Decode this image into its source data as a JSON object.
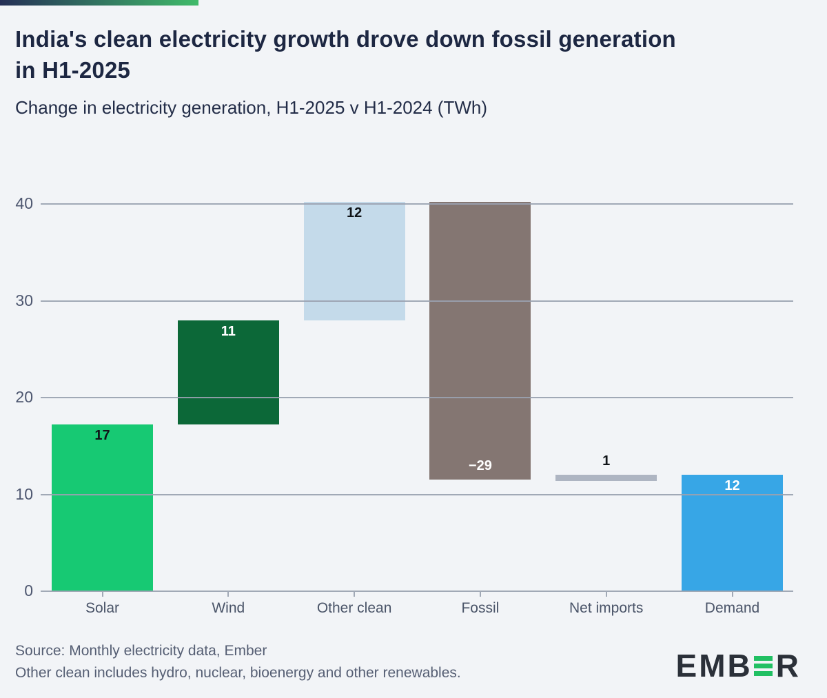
{
  "header": {
    "title_line1": "India's clean electricity growth drove down fossil generation",
    "title_line2": "in H1-2025",
    "subtitle": "Change in electricity generation, H1-2025 v H1-2024 (TWh)",
    "accent_gradient": {
      "from": "#252f56",
      "to": "#40bb6a"
    }
  },
  "chart_data": {
    "type": "bar",
    "variant": "waterfall",
    "title": "India's clean electricity growth drove down fossil generation in H1-2025",
    "subtitle": "Change in electricity generation, H1-2025 v H1-2024 (TWh)",
    "unit": "TWh",
    "categories": [
      "Solar",
      "Wind",
      "Other clean",
      "Fossil",
      "Net imports",
      "Demand"
    ],
    "values": [
      17,
      11,
      12,
      -29,
      1,
      12
    ],
    "ylim": [
      0,
      40
    ],
    "yticks": [
      "0",
      "10",
      "20",
      "30",
      "40"
    ],
    "ytick_values": [
      0,
      10,
      20,
      30,
      40
    ],
    "grid": true,
    "legend": false,
    "gridline_color": "#a9afbb",
    "axis_label_color": "#4e5770",
    "bars": [
      {
        "category": "Solar",
        "value": 17,
        "label": "17",
        "start": 0,
        "end": 17.2,
        "color": "#17c973",
        "label_color": "#101418",
        "label_position": "inside-top"
      },
      {
        "category": "Wind",
        "value": 11,
        "label": "11",
        "start": 17.2,
        "end": 28.0,
        "color": "#0c6838",
        "label_color": "#ffffff",
        "label_position": "inside-top"
      },
      {
        "category": "Other clean",
        "value": 12,
        "label": "12",
        "start": 28.0,
        "end": 40.2,
        "color": "#c4daea",
        "label_color": "#101418",
        "label_position": "inside-top"
      },
      {
        "category": "Fossil",
        "value": -29,
        "label": "−29",
        "start": 40.2,
        "end": 11.5,
        "color": "#847672",
        "label_color": "#ffffff",
        "label_position": "inside-bottom"
      },
      {
        "category": "Net imports",
        "value": 1,
        "label": "1",
        "start": 11.4,
        "end": 12.0,
        "color": "#aeb5c2",
        "label_color": "#101418",
        "label_position": "above"
      },
      {
        "category": "Demand",
        "value": 12,
        "label": "12",
        "start": 0,
        "end": 12.0,
        "color": "#37a6e6",
        "label_color": "#ffffff",
        "label_position": "inside-top"
      }
    ]
  },
  "footer": {
    "source": "Source: Monthly electricity data, Ember",
    "note": "Other clean includes hydro, nuclear, bioenergy and other renewables.",
    "logo": {
      "text_left": "EMB",
      "text_right": "R",
      "bar_color": "#21c063",
      "text_color": "#2b3039"
    }
  }
}
